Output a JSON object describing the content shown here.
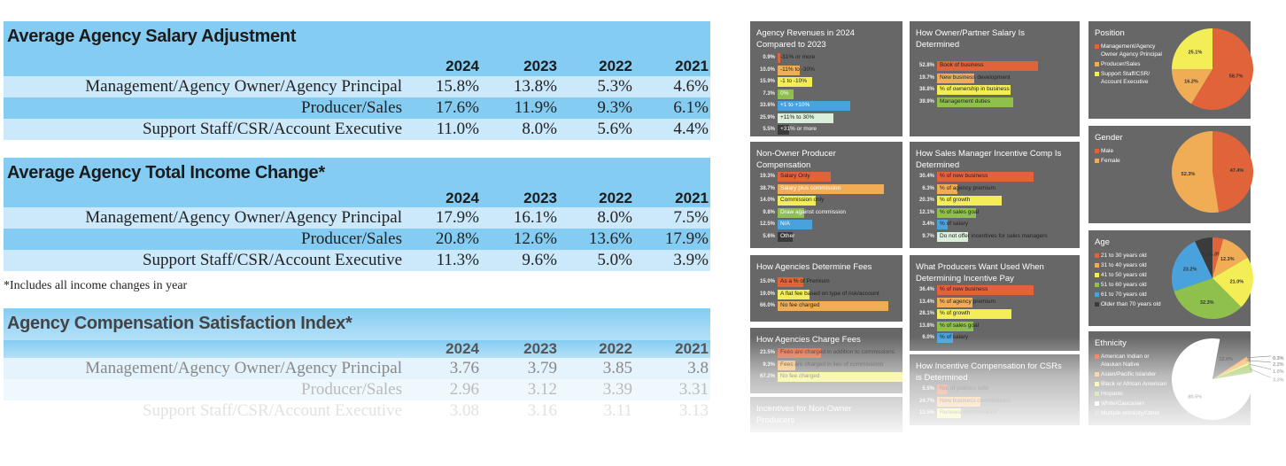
{
  "tables": [
    {
      "title": "Average Agency Salary Adjustment",
      "years": [
        "2024",
        "2023",
        "2022",
        "2021"
      ],
      "rows": [
        {
          "label": "Management/Agency Owner/Agency Principal",
          "values": [
            "15.8%",
            "13.8%",
            "5.3%",
            "4.6%"
          ]
        },
        {
          "label": "Producer/Sales",
          "values": [
            "17.6%",
            "11.9%",
            "9.3%",
            "6.1%"
          ]
        },
        {
          "label": "Support Staff/CSR/Account Executive",
          "values": [
            "11.0%",
            "8.0%",
            "5.6%",
            "4.4%"
          ]
        }
      ]
    },
    {
      "title": "Average Agency Total Income Change*",
      "years": [
        "2024",
        "2023",
        "2022",
        "2021"
      ],
      "rows": [
        {
          "label": "Management/Agency Owner/Agency Principal",
          "values": [
            "17.9%",
            "16.1%",
            "8.0%",
            "7.5%"
          ]
        },
        {
          "label": "Producer/Sales",
          "values": [
            "20.8%",
            "12.6%",
            "13.6%",
            "17.9%"
          ]
        },
        {
          "label": "Support Staff/CSR/Account Executive",
          "values": [
            "11.3%",
            "9.6%",
            "5.0%",
            "3.9%"
          ]
        }
      ],
      "footnote": "*Includes all income changes in year"
    },
    {
      "title": "Agency Compensation Satisfaction Index*",
      "years": [
        "2024",
        "2023",
        "2022",
        "2021"
      ],
      "rows": [
        {
          "label": "Management/Agency Owner/Agency Principal",
          "values": [
            "3.76",
            "3.79",
            "3.85",
            "3.8"
          ]
        },
        {
          "label": "Producer/Sales",
          "values": [
            "2.96",
            "3.12",
            "3.39",
            "3.31"
          ]
        },
        {
          "label": "Support Staff/CSR/Account Executive",
          "values": [
            "3.08",
            "3.16",
            "3.11",
            "3.13"
          ]
        }
      ]
    }
  ],
  "colors": {
    "orange_red": "#e0633a",
    "light_orange": "#f1ad56",
    "yellow": "#f3ee55",
    "green": "#8fc04c",
    "blue": "#4aa2dd",
    "pale_green": "#dcefdc",
    "dark": "#3b3b3b",
    "panel_bg": "#676768",
    "table_header": "#85ccf3",
    "table_row_light": "#cbe9fb"
  },
  "chart_data": [
    {
      "type": "bar",
      "title": "Agency Revenues in 2024 Compared to 2023",
      "categories": [
        "-31% or more",
        "-11% to -30%",
        "-1 to -10%",
        "0%",
        "+1 to +10%",
        "+11% to 30%",
        "+31% or more"
      ],
      "values": [
        0.9,
        10.0,
        15.9,
        7.3,
        33.6,
        25.9,
        5.5
      ],
      "labels": [
        "0.9%",
        "10.0%",
        "15.9%",
        "7.3%",
        "33.6%",
        "25.9%",
        "5.5%"
      ],
      "colors": [
        "#e0633a",
        "#f1ad56",
        "#f3ee55",
        "#8fc04c",
        "#4aa2dd",
        "#dcefdc",
        "#3b3b3b"
      ],
      "label_light": [
        false,
        false,
        false,
        true,
        true,
        false,
        true
      ]
    },
    {
      "type": "bar",
      "title": "How Owner/Partner Salary Is Determined",
      "categories": [
        "Book of business",
        "New business development",
        "% of ownership in business",
        "Management duties"
      ],
      "values": [
        52.8,
        19.7,
        38.8,
        39.9
      ],
      "labels": [
        "52.8%",
        "19.7%",
        "38.8%",
        "39.9%"
      ],
      "colors": [
        "#e0633a",
        "#f1ad56",
        "#f3ee55",
        "#8fc04c"
      ],
      "label_light": [
        false,
        false,
        false,
        false
      ]
    },
    {
      "type": "pie",
      "title": "Position",
      "categories": [
        "Management/Agency Owner Agency Principal",
        "Producer/Sales",
        "Support Staff/CSR/ Account Executive"
      ],
      "values": [
        58.7,
        16.2,
        25.1
      ],
      "labels": [
        "58.7%",
        "16.2%",
        "25.1%"
      ],
      "colors": [
        "#e0633a",
        "#f1ad56",
        "#f3ee55"
      ]
    },
    {
      "type": "bar",
      "title": "Non-Owner Producer Compensation",
      "categories": [
        "Salary Only",
        "Salary plus commission",
        "Commission only",
        "Draw against commission",
        "N/A",
        "Other"
      ],
      "values": [
        19.3,
        38.7,
        14.0,
        9.8,
        12.5,
        5.6
      ],
      "labels": [
        "19.3%",
        "38.7%",
        "14.0%",
        "9.8%",
        "12.5%",
        "5.6%"
      ],
      "colors": [
        "#e0633a",
        "#f1ad56",
        "#f3ee55",
        "#8fc04c",
        "#4aa2dd",
        "#3b3b3b"
      ],
      "label_light": [
        false,
        true,
        false,
        true,
        true,
        true
      ]
    },
    {
      "type": "bar",
      "title": "How Sales Manager Incentive Comp Is Determined",
      "categories": [
        "% of new business",
        "% of agency premium",
        "% of growth",
        "% of sales goal",
        "% of salary",
        "Do not offer incentives for sales managers"
      ],
      "values": [
        30.4,
        6.3,
        20.3,
        12.1,
        3.4,
        9.7
      ],
      "labels": [
        "30.4%",
        "6.3%",
        "20.3%",
        "12.1%",
        "3.4%",
        "9.7%"
      ],
      "colors": [
        "#e0633a",
        "#f1ad56",
        "#f3ee55",
        "#8fc04c",
        "#4aa2dd",
        "#dcefdc"
      ],
      "label_light": [
        false,
        false,
        false,
        false,
        false,
        false
      ]
    },
    {
      "type": "pie",
      "title": "Gender",
      "categories": [
        "Male",
        "Female"
      ],
      "values": [
        47.4,
        52.3
      ],
      "labels": [
        "47.4%",
        "52.3%"
      ],
      "colors": [
        "#e0633a",
        "#f1ad56"
      ]
    },
    {
      "type": "bar",
      "title": "How Agencies Determine Fees",
      "categories": [
        "As a % of Premium",
        "A flat fee based on type of risk/account",
        "No fee charged"
      ],
      "values": [
        15.0,
        19.0,
        66.0
      ],
      "labels": [
        "15.0%",
        "19.0%",
        "66.0%"
      ],
      "colors": [
        "#e0633a",
        "#f3ee55",
        "#f1ad56"
      ],
      "label_light": [
        false,
        false,
        false
      ]
    },
    {
      "type": "bar",
      "title": "What Producers Want Used When Determining Incentive Pay",
      "categories": [
        "% of new business",
        "% of agency premium",
        "% of growth",
        "% of sales goal",
        "% of salary"
      ],
      "values": [
        36.4,
        13.4,
        28.1,
        13.8,
        6.0
      ],
      "labels": [
        "36.4%",
        "13.4%",
        "28.1%",
        "13.8%",
        "6.0%"
      ],
      "colors": [
        "#e0633a",
        "#f1ad56",
        "#f3ee55",
        "#8fc04c",
        "#4aa2dd"
      ],
      "label_light": [
        false,
        false,
        false,
        false,
        false
      ]
    },
    {
      "type": "pie",
      "title": "Age",
      "categories": [
        "21 to 30 years old",
        "31 to 40 years old",
        "41 to 50 years old",
        "51 to 60 years old",
        "61 to 70 years old",
        "Older than 70 years old"
      ],
      "values": [
        4.3,
        12.3,
        21.0,
        32.3,
        23.2,
        7.1
      ],
      "labels": [
        "4.3%",
        "12.3%",
        "21.0%",
        "32.3%",
        "23.2%",
        "7.1%"
      ],
      "colors": [
        "#e0633a",
        "#f1ad56",
        "#f3ee55",
        "#8fc04c",
        "#4aa2dd",
        "#3b3b3b"
      ]
    },
    {
      "type": "bar",
      "title": "How Agencies Charge Fees",
      "categories": [
        "Fees are charged in addition to commissions",
        "Fees are charged in lieu of commissions",
        "No fee charged"
      ],
      "values": [
        23.5,
        9.3,
        67.2
      ],
      "labels": [
        "23.5%",
        "9.3%",
        "67.2%"
      ],
      "colors": [
        "#e0633a",
        "#f1ad56",
        "#f3ee55"
      ],
      "label_light": [
        false,
        false,
        false
      ]
    },
    {
      "type": "bar",
      "title": "How Incentive Compensation for CSRs is Determined",
      "categories": [
        "No. of policies sold",
        "New business commissions",
        "Renewal commissions"
      ],
      "values": [
        5.5,
        24.7,
        13.5
      ],
      "labels": [
        "5.5%",
        "24.7%",
        "13.5%"
      ],
      "colors": [
        "#e0633a",
        "#f1ad56",
        "#f3ee55"
      ],
      "label_light": [
        false,
        false,
        false
      ]
    },
    {
      "type": "pie",
      "title": "Ethnicity",
      "categories": [
        "American Indian or Alaskan Native",
        "Asian/Pacific Islander",
        "Black or African American",
        "Hispanic",
        "White/Caucasian",
        "Multiple ethnicity/Other"
      ],
      "values": [
        0.3,
        2.2,
        1.0,
        3.3,
        80.5,
        12.6
      ],
      "labels": [
        "0.3%",
        "2.2%",
        "1.0%",
        "3.3%",
        "80.5%",
        "12.6%"
      ],
      "colors": [
        "#e0633a",
        "#f1ad56",
        "#f3ee55",
        "#8fc04c",
        "#ffffff",
        "#676768"
      ]
    },
    {
      "type": "bar",
      "title": "Incentives for Non-Owner Producers",
      "categories": [],
      "values": [],
      "labels": [],
      "colors": [],
      "label_light": []
    }
  ]
}
